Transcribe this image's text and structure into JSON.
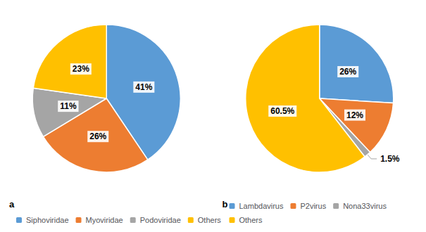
{
  "chart_data": [
    {
      "type": "pie",
      "categories": [
        "Siphoviridae",
        "Myoviridae",
        "Podoviridae",
        "Others"
      ],
      "values": [
        41,
        26,
        11,
        23
      ],
      "value_labels": [
        "41%",
        "26%",
        "11%",
        "23%"
      ],
      "colors": [
        "#5B9BD5",
        "#ED7D31",
        "#A5A5A5",
        "#FFC000"
      ],
      "data_labels": true,
      "legend": "bottom",
      "annotations": [
        "a"
      ]
    },
    {
      "type": "pie",
      "categories": [
        "Lambdavirus",
        "P2virus",
        "Nona33virus",
        "Others"
      ],
      "values": [
        26,
        12,
        1.5,
        60.5
      ],
      "value_labels": [
        "26%",
        "12%",
        "1.5%",
        "60.5%"
      ],
      "colors": [
        "#5B9BD5",
        "#ED7D31",
        "#A5A5A5",
        "#FFC000"
      ],
      "data_labels": true,
      "legend": "bottom",
      "annotations": [
        "b"
      ]
    }
  ]
}
